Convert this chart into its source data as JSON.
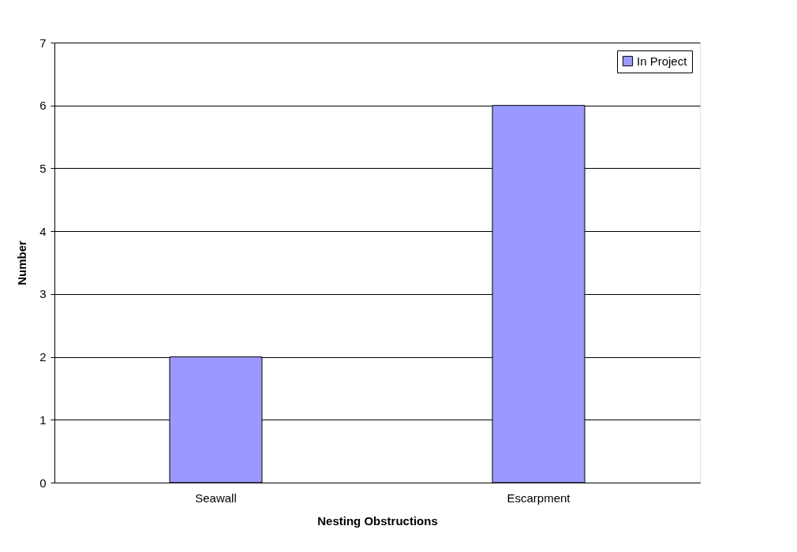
{
  "chart_data": {
    "type": "bar",
    "xlabel": "Nesting Obstructions",
    "ylabel": "Number",
    "categories": [
      "Seawall",
      "Escarpment"
    ],
    "series": [
      {
        "name": "In Project",
        "color": "#9999ff",
        "values": [
          2,
          6
        ]
      }
    ],
    "ylim": [
      0,
      7
    ],
    "yticks": [
      0,
      1,
      2,
      3,
      4,
      5,
      6,
      7
    ],
    "grid": "y",
    "legend": "top right"
  }
}
